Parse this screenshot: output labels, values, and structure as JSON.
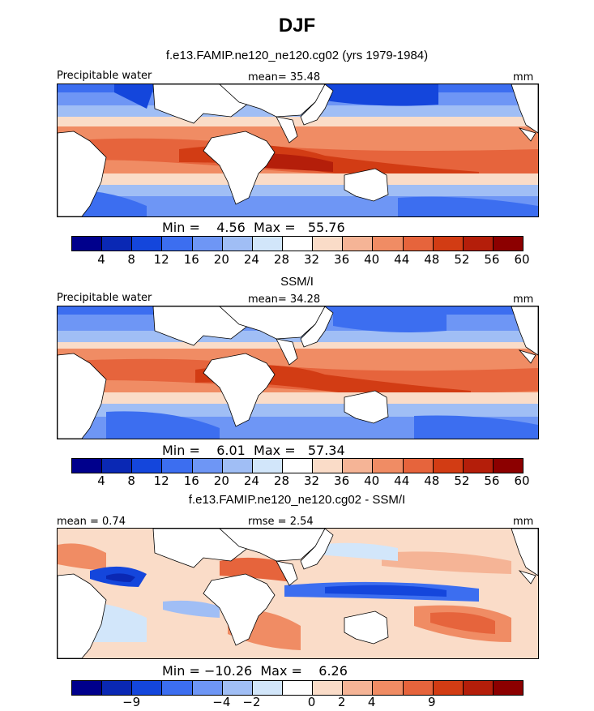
{
  "title": "DJF",
  "panels": [
    {
      "id": "model",
      "subtitle": "f.e13.FAMIP.ne120_ne120.cg02 (yrs 1979-1984)",
      "field_label": "Precipitable water",
      "stat_left": "mean=  35.48",
      "units": "mm",
      "minmax": "Min =    4.56  Max =   55.76",
      "ticks": [
        "4",
        "8",
        "12",
        "16",
        "20",
        "24",
        "28",
        "32",
        "36",
        "40",
        "44",
        "48",
        "52",
        "56",
        "60"
      ]
    },
    {
      "id": "obs",
      "subtitle": "SSM/I",
      "field_label": "Precipitable water",
      "stat_left": "mean=  34.28",
      "units": "mm",
      "minmax": "Min =    6.01  Max =   57.34",
      "ticks": [
        "4",
        "8",
        "12",
        "16",
        "20",
        "24",
        "28",
        "32",
        "36",
        "40",
        "44",
        "48",
        "52",
        "56",
        "60"
      ]
    },
    {
      "id": "diff",
      "subtitle": "f.e13.FAMIP.ne120_ne120.cg02 - SSM/I",
      "field_label": "mean =    0.74",
      "stat_left": "rmse =    2.54",
      "units": "mm",
      "minmax": "Min = −10.26  Max =    6.26",
      "ticks": [
        "−9",
        "−4",
        "−2",
        "0",
        "2",
        "4",
        "9"
      ]
    }
  ],
  "colors": {
    "scale": [
      "#00008c",
      "#0a28b4",
      "#1446dc",
      "#3c6ef0",
      "#6e96f5",
      "#a0bef5",
      "#d2e6fa",
      "#ffffff",
      "#fadcc8",
      "#f5b496",
      "#f08c64",
      "#e6643c",
      "#d23c14",
      "#b41e0a",
      "#8c0000"
    ],
    "land": "#ffffff",
    "coast": "#000000"
  }
}
